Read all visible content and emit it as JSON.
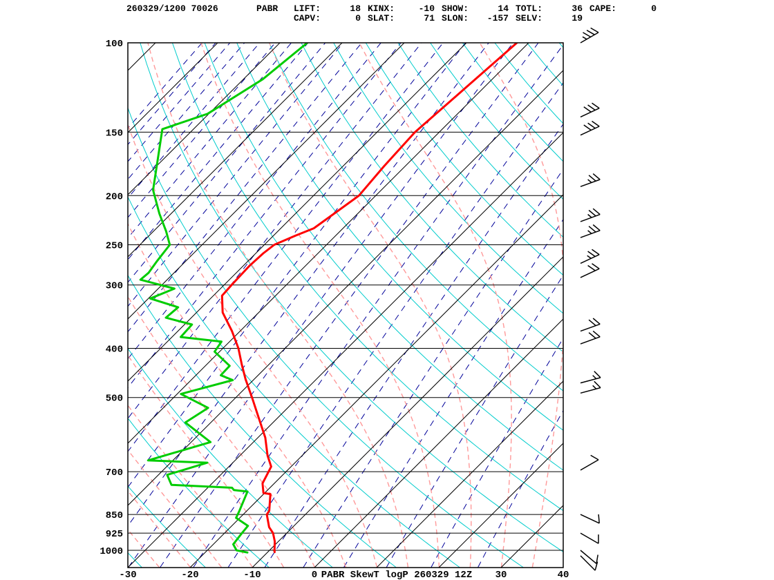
{
  "header": {
    "datetime_station": "260329/1200 70026",
    "station_id": "PABR",
    "indices_row1": [
      {
        "label": "LIFT:",
        "value": "18"
      },
      {
        "label": "KINX:",
        "value": "-10"
      },
      {
        "label": "SHOW:",
        "value": "14"
      },
      {
        "label": "TOTL:",
        "value": "36"
      },
      {
        "label": "CAPE:",
        "value": "0"
      }
    ],
    "indices_row2": [
      {
        "label": "CAPV:",
        "value": "0"
      },
      {
        "label": "SLAT:",
        "value": "71"
      },
      {
        "label": "SLON:",
        "value": "-157"
      },
      {
        "label": "SELV:",
        "value": "19"
      }
    ]
  },
  "chart_data": {
    "type": "line",
    "title": "PABR SkewT logP 260329 12Z",
    "x_axis": {
      "ticks": [
        -30,
        -20,
        -10,
        0,
        10,
        20,
        30,
        40
      ],
      "range": [
        -30,
        40
      ]
    },
    "y_axis": {
      "scale": "log",
      "ticks": [
        100,
        150,
        200,
        250,
        300,
        400,
        500,
        700,
        850,
        925,
        1000
      ],
      "range": [
        100,
        1080
      ]
    },
    "series": [
      {
        "name": "temperature",
        "color": "#ff0000",
        "points": [
          [
            100,
            -51.9
          ],
          [
            125,
            -53.0
          ],
          [
            150,
            -53.9
          ],
          [
            175,
            -53.4
          ],
          [
            200,
            -52.7
          ],
          [
            214,
            -53.6
          ],
          [
            232,
            -54.7
          ],
          [
            240,
            -56.5
          ],
          [
            250,
            -58.4
          ],
          [
            260,
            -58.8
          ],
          [
            275,
            -59.0
          ],
          [
            300,
            -58.8
          ],
          [
            315,
            -58.6
          ],
          [
            340,
            -55.8
          ],
          [
            370,
            -51.3
          ],
          [
            400,
            -47.5
          ],
          [
            430,
            -44.4
          ],
          [
            460,
            -41.4
          ],
          [
            500,
            -37.4
          ],
          [
            550,
            -32.9
          ],
          [
            600,
            -28.8
          ],
          [
            650,
            -25.6
          ],
          [
            684,
            -23.2
          ],
          [
            738,
            -21.9
          ],
          [
            771,
            -20.2
          ],
          [
            775,
            -18.9
          ],
          [
            836,
            -16.4
          ],
          [
            850,
            -16.2
          ],
          [
            900,
            -13.8
          ],
          [
            925,
            -12.2
          ],
          [
            960,
            -10.6
          ],
          [
            1000,
            -9.2
          ],
          [
            1008,
            -8.9
          ]
        ]
      },
      {
        "name": "dewpoint",
        "color": "#00cc00",
        "points": [
          [
            100,
            -85.6
          ],
          [
            118,
            -86.9
          ],
          [
            138,
            -90.2
          ],
          [
            148,
            -95.0
          ],
          [
            169,
            -91.0
          ],
          [
            195,
            -86.7
          ],
          [
            217,
            -81.9
          ],
          [
            235,
            -78.0
          ],
          [
            250,
            -75.2
          ],
          [
            270,
            -74.6
          ],
          [
            284,
            -74.1
          ],
          [
            293,
            -74.3
          ],
          [
            305,
            -67.4
          ],
          [
            319,
            -69.7
          ],
          [
            332,
            -63.8
          ],
          [
            348,
            -64.1
          ],
          [
            359,
            -58.8
          ],
          [
            380,
            -58.6
          ],
          [
            388,
            -51.3
          ],
          [
            406,
            -50.8
          ],
          [
            433,
            -46.1
          ],
          [
            452,
            -46.0
          ],
          [
            462,
            -43.3
          ],
          [
            492,
            -49.4
          ],
          [
            524,
            -42.8
          ],
          [
            560,
            -44.1
          ],
          [
            612,
            -36.9
          ],
          [
            665,
            -44.0
          ],
          [
            672,
            -34.1
          ],
          [
            710,
            -38.6
          ],
          [
            743,
            -36.3
          ],
          [
            753,
            -26.1
          ],
          [
            761,
            -25.4
          ],
          [
            766,
            -23.0
          ],
          [
            840,
            -21.1
          ],
          [
            863,
            -20.6
          ],
          [
            895,
            -17.4
          ],
          [
            925,
            -17.2
          ],
          [
            973,
            -16.8
          ],
          [
            1000,
            -15.3
          ],
          [
            1010,
            -13.2
          ]
        ]
      }
    ],
    "wind_barbs": [
      {
        "p": 100,
        "dir": 60,
        "spd": 35
      },
      {
        "p": 140,
        "dir": 65,
        "spd": 30
      },
      {
        "p": 152,
        "dir": 65,
        "spd": 30
      },
      {
        "p": 192,
        "dir": 70,
        "spd": 25
      },
      {
        "p": 225,
        "dir": 70,
        "spd": 25
      },
      {
        "p": 242,
        "dir": 70,
        "spd": 25
      },
      {
        "p": 272,
        "dir": 65,
        "spd": 25
      },
      {
        "p": 290,
        "dir": 65,
        "spd": 20
      },
      {
        "p": 370,
        "dir": 70,
        "spd": 20
      },
      {
        "p": 392,
        "dir": 70,
        "spd": 20
      },
      {
        "p": 468,
        "dir": 75,
        "spd": 15
      },
      {
        "p": 490,
        "dir": 75,
        "spd": 15
      },
      {
        "p": 695,
        "dir": 60,
        "spd": 10
      },
      {
        "p": 850,
        "dir": 115,
        "spd": 10
      },
      {
        "p": 925,
        "dir": 120,
        "spd": 10
      },
      {
        "p": 1000,
        "dir": 130,
        "spd": 10
      },
      {
        "p": 1025,
        "dir": 135,
        "spd": 10
      }
    ],
    "background": {
      "isotherm_step_c": 10,
      "colors": {
        "isotherm": "#000000",
        "dry_adiabat": "#00cccc",
        "moist_adiabat": "#ff9999",
        "mixing_ratio": "#000099",
        "gridline": "#000000",
        "frame": "#000000"
      }
    }
  }
}
